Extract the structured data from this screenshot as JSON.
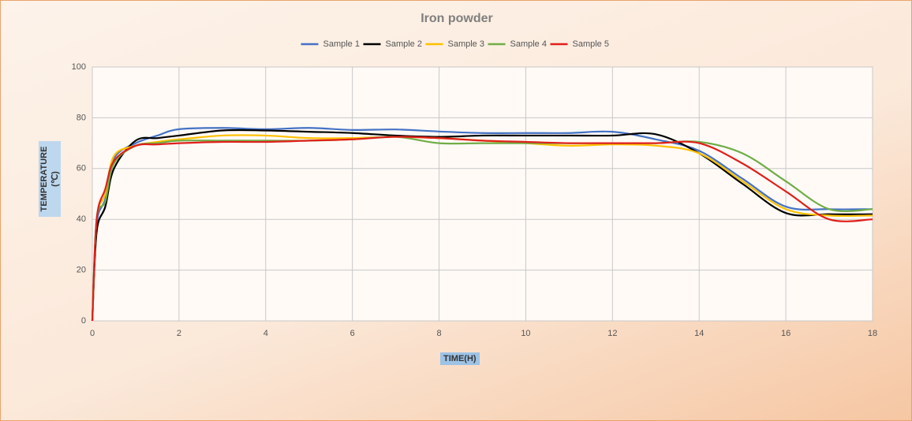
{
  "chart_data": {
    "type": "line",
    "title": "Iron powder",
    "x_label": "TIME(H)",
    "y_label": "TEMPERATURE (℃)",
    "x": [
      0,
      0.1,
      0.3,
      0.5,
      1,
      1.5,
      2,
      3,
      4,
      5,
      6,
      7,
      8,
      9,
      10,
      11,
      12,
      13,
      14,
      15,
      16,
      17,
      18
    ],
    "series": [
      {
        "name": "Sample 1",
        "color": "#4472c4",
        "values": [
          0,
          38,
          48,
          64,
          70,
          73,
          75.5,
          76,
          75.5,
          76,
          75.2,
          75.4,
          74.6,
          74,
          74,
          74,
          74.5,
          71.5,
          67,
          56,
          45,
          44,
          44
        ]
      },
      {
        "name": "Sample 2",
        "color": "#000000",
        "values": [
          0,
          35,
          45,
          60,
          71,
          72,
          73,
          75,
          75,
          74.5,
          74,
          73,
          72.5,
          73,
          73,
          73,
          73,
          73.5,
          66,
          54,
          42.5,
          42,
          42
        ]
      },
      {
        "name": "Sample 3",
        "color": "#ffc000",
        "values": [
          0,
          40,
          50,
          65,
          69,
          70.5,
          71.5,
          73,
          73,
          72,
          72,
          72.5,
          72,
          71,
          70,
          69,
          69.5,
          69,
          66,
          55,
          44,
          41.5,
          41.5
        ]
      },
      {
        "name": "Sample 4",
        "color": "#70ad47",
        "values": [
          0,
          40,
          47,
          62,
          69,
          70,
          71,
          71,
          71,
          71,
          71.5,
          72.5,
          70,
          70,
          70,
          70,
          70,
          70,
          70.5,
          66,
          55,
          44,
          44
        ]
      },
      {
        "name": "Sample 5",
        "color": "#e0201b",
        "values": [
          0,
          40,
          52,
          63,
          69,
          69.5,
          70,
          70.5,
          70.5,
          71,
          71.5,
          72.5,
          72,
          71,
          70.5,
          70,
          70,
          70,
          70,
          62,
          51,
          40,
          40
        ]
      }
    ],
    "xlim": [
      0,
      18
    ],
    "xticks": [
      0,
      2,
      4,
      6,
      8,
      10,
      12,
      14,
      16,
      18
    ],
    "ylim": [
      0,
      100
    ],
    "yticks": [
      0,
      20,
      40,
      60,
      80,
      100
    ],
    "grid": true
  }
}
